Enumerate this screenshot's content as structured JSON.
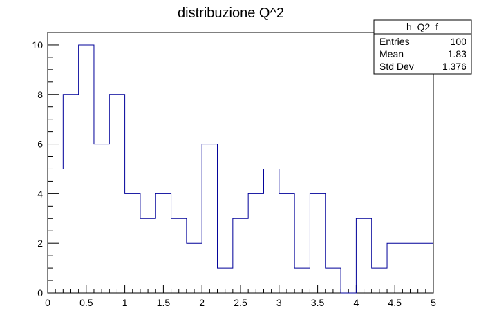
{
  "chart_data": {
    "type": "bar",
    "style": "step-histogram",
    "title": "distribuzione Q^2",
    "xlabel": "",
    "ylabel": "",
    "xlim": [
      0,
      5
    ],
    "ylim": [
      0,
      10.5
    ],
    "bin_edges": [
      0.0,
      0.2,
      0.4,
      0.6,
      0.8,
      1.0,
      1.2,
      1.4,
      1.6,
      1.8,
      2.0,
      2.2,
      2.4,
      2.6,
      2.8,
      3.0,
      3.2,
      3.4,
      3.6,
      3.8,
      4.0,
      4.2,
      4.4,
      4.6,
      4.8,
      5.0
    ],
    "values": [
      5,
      8,
      10,
      6,
      8,
      4,
      3,
      4,
      3,
      2,
      6,
      1,
      3,
      4,
      5,
      4,
      1,
      4,
      1,
      0,
      3,
      1,
      2,
      2,
      2
    ],
    "x_ticks": [
      "0",
      "0.5",
      "1",
      "1.5",
      "2",
      "2.5",
      "3",
      "3.5",
      "4",
      "4.5",
      "5"
    ],
    "y_ticks": [
      "0",
      "2",
      "4",
      "6",
      "8",
      "10"
    ],
    "grid": false,
    "line_color": "#000099",
    "stats_box": {
      "name": "h_Q2_f",
      "rows": [
        {
          "label": "Entries",
          "value": "100"
        },
        {
          "label": "Mean",
          "value": "1.83"
        },
        {
          "label": "Std Dev",
          "value": "1.376"
        }
      ]
    }
  }
}
